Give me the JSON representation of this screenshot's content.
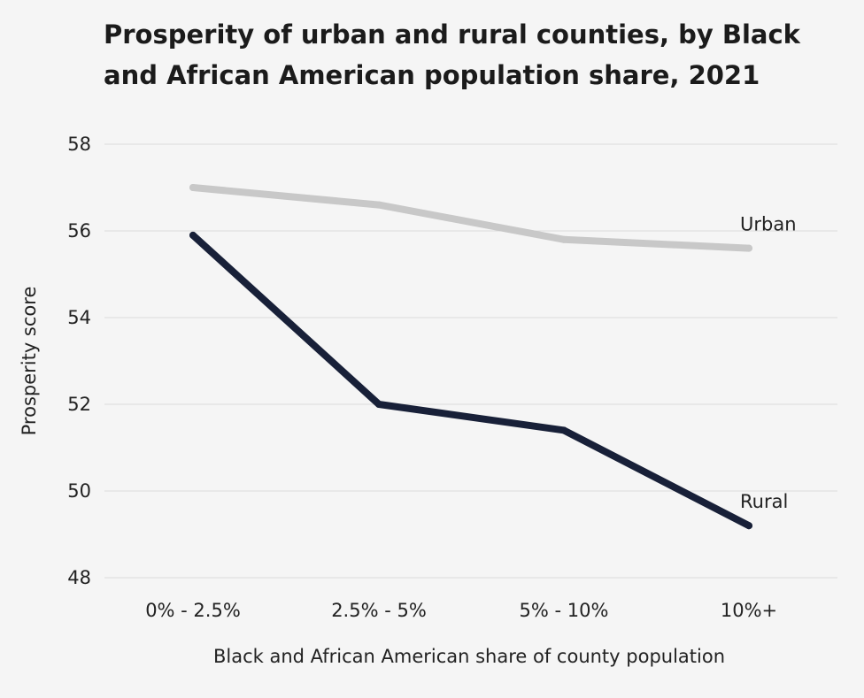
{
  "chart_data": {
    "type": "line",
    "title": "Prosperity of urban and rural counties, by Black and African American population share, 2021",
    "xlabel": "Black and African American share of county population",
    "ylabel": "Prosperity score",
    "categories": [
      "0% - 2.5%",
      "2.5% - 5%",
      "5% - 10%",
      "10%+"
    ],
    "ylim": [
      48,
      58
    ],
    "yticks": [
      48,
      50,
      52,
      54,
      56,
      58
    ],
    "grid": true,
    "legend": "direct labels at line ends",
    "series": [
      {
        "name": "Urban",
        "values": [
          57.0,
          56.6,
          55.8,
          55.6
        ],
        "color": "#c8c8c8"
      },
      {
        "name": "Rural",
        "values": [
          55.9,
          52.0,
          51.4,
          49.2
        ],
        "color": "#182038"
      }
    ],
    "gridline_color": "#dcdcdc",
    "background": "#f5f5f5"
  }
}
